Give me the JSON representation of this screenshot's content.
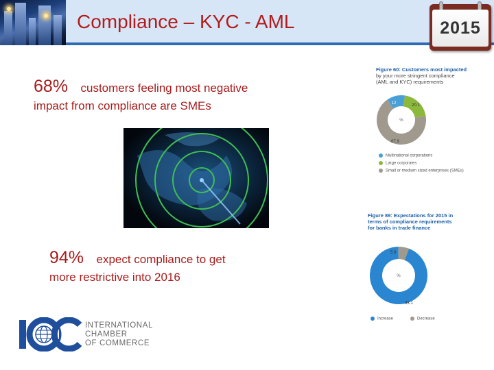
{
  "header": {
    "title": "Compliance – KYC - AML",
    "calendar_year": "2015"
  },
  "stat1": {
    "percent": "68%",
    "text_line1": "customers feeling most negative",
    "text_line2": "impact from compliance are SMEs"
  },
  "stat2": {
    "percent": "94%",
    "text_line1": "expect compliance to get",
    "text_line2": "more restrictive into 2016"
  },
  "figure1": {
    "title_line1": "Figure 60: Customers most impacted",
    "title_line2": "by your more stringent compliance",
    "title_line3": "(AML and KYC) requirements",
    "center_label": "%",
    "slice_labels": [
      "12",
      "20.1",
      "67.9"
    ],
    "legend": [
      "Multinational corporations",
      "Large corporates",
      "Small or medium sized enterprises (SMEs)"
    ]
  },
  "figure2": {
    "title_line1": "Figure 89: Expectations for 2015 in",
    "title_line2": "terms of compliance requirements",
    "title_line3": "for banks in trade finance",
    "center_label": "%",
    "slice_labels": [
      "5.9",
      "93.1"
    ],
    "legend": [
      "Increase",
      "Decrease"
    ]
  },
  "chart_data": [
    {
      "type": "pie",
      "title": "Figure 60: Customers most impacted by your more stringent compliance (AML and KYC) requirements",
      "categories": [
        "Multinational corporations",
        "Large corporates",
        "Small or medium sized enterprises (SMEs)"
      ],
      "values": [
        12,
        20.1,
        67.9
      ],
      "colors": [
        "#4a9fd6",
        "#8cb83b",
        "#a09a8e"
      ],
      "legend": "bottom"
    },
    {
      "type": "pie",
      "title": "Figure 89: Expectations for 2015 in terms of compliance requirements for banks in trade finance",
      "categories": [
        "Increase",
        "Decrease"
      ],
      "values": [
        93.1,
        5.9
      ],
      "colors": [
        "#2a86d0",
        "#a09a8e"
      ],
      "legend": "bottom"
    }
  ],
  "logo": {
    "mark": "ICC",
    "line1": "INTERNATIONAL",
    "line2": "CHAMBER",
    "line3": "OF COMMERCE"
  },
  "colors": {
    "title_red": "#b21c1c",
    "header_blue": "#2f6bb5",
    "figure_blue": "#1b5ea6",
    "logo_blue": "#1f4f9c"
  }
}
